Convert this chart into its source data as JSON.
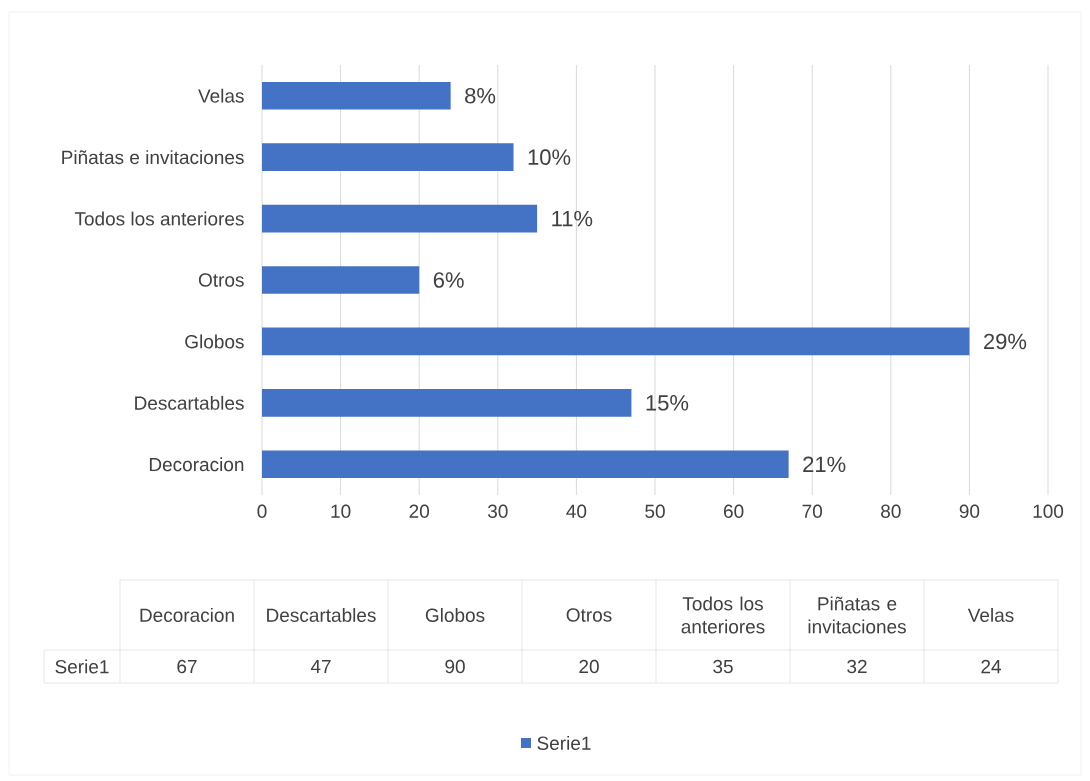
{
  "chart_data": {
    "type": "bar",
    "orientation": "horizontal",
    "categories": [
      "Velas",
      "Piñatas e invitaciones",
      "Todos los anteriores",
      "Otros",
      "Globos",
      "Descartables",
      "Decoracion"
    ],
    "series": [
      {
        "name": "Serie1",
        "color": "#4472c4",
        "values": [
          24,
          32,
          35,
          20,
          90,
          47,
          67
        ]
      }
    ],
    "annotations": [
      {
        "text": "8%",
        "x": 24,
        "y": "Velas"
      },
      {
        "text": "10%",
        "x": 32,
        "y": "Piñatas e invitaciones"
      },
      {
        "text": "11%",
        "x": 35,
        "y": "Todos los anteriores"
      },
      {
        "text": "6%",
        "x": 20,
        "y": "Otros"
      },
      {
        "text": "29%",
        "x": 90,
        "y": "Globos"
      },
      {
        "text": "15%",
        "x": 47,
        "y": "Descartables"
      },
      {
        "text": "21%",
        "x": 67,
        "y": "Decoracion"
      },
      "67",
      "47",
      "90",
      "20",
      "35",
      "32",
      "24"
    ],
    "xlim": [
      0,
      100
    ],
    "xticks": [
      0,
      10,
      20,
      30,
      40,
      50,
      60,
      70,
      80,
      90,
      100
    ],
    "grid": "x",
    "legend": "bottom"
  }
}
